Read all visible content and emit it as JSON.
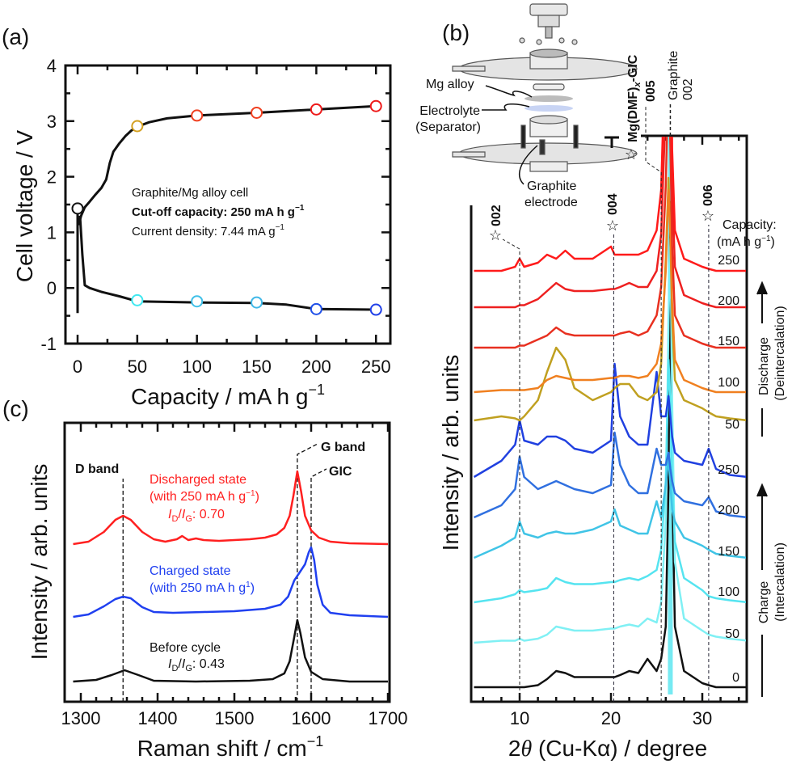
{
  "panel_labels": {
    "a": "(a)",
    "b": "(b)",
    "c": "(c)"
  },
  "chart_data": [
    {
      "panel": "a",
      "type": "line",
      "xlabel": "Capacity / mA h g",
      "xlabel_sup": "−1",
      "ylabel": "Cell voltage / V",
      "xlim": [
        -10,
        262
      ],
      "ylim": [
        -1,
        4
      ],
      "xticks": [
        "0",
        "50",
        "100",
        "150",
        "200",
        "250"
      ],
      "yticks": [
        "-1",
        "0",
        "1",
        "2",
        "3",
        "4"
      ],
      "grid": false,
      "annotations": {
        "cell": "Graphite/Mg alloy cell",
        "cutoff": "Cut-off capacity: 250 mA h g",
        "cutoff_sup": "−1",
        "current": "Current density: 7.44 mA g",
        "current_sup": "−1"
      },
      "series": [
        {
          "role": "initial",
          "color": "#111111",
          "points": [
            [
              0,
              1.43
            ],
            [
              0,
              -0.45
            ]
          ]
        },
        {
          "role": "discharge",
          "color": "#111111",
          "points": [
            [
              0,
              1.3
            ],
            [
              1,
              1.15
            ],
            [
              3,
              1.3
            ],
            [
              6,
              1.45
            ],
            [
              10,
              1.55
            ],
            [
              15,
              1.68
            ],
            [
              20,
              1.8
            ],
            [
              24,
              1.95
            ],
            [
              27,
              2.25
            ],
            [
              30,
              2.45
            ],
            [
              35,
              2.6
            ],
            [
              40,
              2.73
            ],
            [
              45,
              2.83
            ],
            [
              50,
              2.9
            ],
            [
              60,
              2.98
            ],
            [
              75,
              3.05
            ],
            [
              100,
              3.1
            ],
            [
              150,
              3.15
            ],
            [
              200,
              3.21
            ],
            [
              250,
              3.27
            ]
          ]
        },
        {
          "role": "charge",
          "color": "#111111",
          "points": [
            [
              2,
              1.3
            ],
            [
              4,
              0.6
            ],
            [
              6,
              0.05
            ],
            [
              10,
              0
            ],
            [
              20,
              -0.07
            ],
            [
              35,
              -0.15
            ],
            [
              50,
              -0.24
            ],
            [
              100,
              -0.26
            ],
            [
              150,
              -0.27
            ],
            [
              175,
              -0.3
            ],
            [
              200,
              -0.38
            ],
            [
              250,
              -0.39
            ]
          ]
        }
      ],
      "markers": [
        {
          "x": 0,
          "y": 1.43,
          "color": "#111111"
        },
        {
          "x": 50,
          "y": 2.91,
          "color": "#d4a020"
        },
        {
          "x": 100,
          "y": 3.1,
          "color": "#f04020"
        },
        {
          "x": 150,
          "y": 3.15,
          "color": "#f04020"
        },
        {
          "x": 200,
          "y": 3.21,
          "color": "#ee1a1a"
        },
        {
          "x": 250,
          "y": 3.27,
          "color": "#ee1a1a"
        },
        {
          "x": 50,
          "y": -0.22,
          "color": "#40e8f0"
        },
        {
          "x": 100,
          "y": -0.24,
          "color": "#40c0e8"
        },
        {
          "x": 150,
          "y": -0.26,
          "color": "#40b8e8"
        },
        {
          "x": 200,
          "y": -0.38,
          "color": "#2050e8"
        },
        {
          "x": 250,
          "y": -0.39,
          "color": "#2040e8"
        }
      ]
    },
    {
      "panel": "b",
      "type": "line",
      "xlabel_parts": {
        "two": "2",
        "theta": "θ",
        "rest": " (Cu-Kα) / degree"
      },
      "ylabel": "Intensity / arb. units",
      "xlim": [
        5,
        35
      ],
      "xticks": [
        "10",
        "20",
        "30"
      ],
      "grid": false,
      "schematic_labels": {
        "mg_alloy": "Mg alloy",
        "electrolyte": "Electrolyte",
        "separator": "(Separator)",
        "graphite": "Graphite",
        "electrode": "electrode"
      },
      "reflections": {
        "gic_title": "Mg(DMF)",
        "gic_sub": "x",
        "gic_suffix": "-GIC",
        "r002": {
          "label": "002",
          "x": 10.0
        },
        "r004": {
          "label": "004",
          "x": 20.3
        },
        "r005": {
          "label": "005",
          "x": 25.5
        },
        "r006": {
          "label": "006",
          "x": 30.7
        },
        "graphite_title": "Graphite",
        "graphite": {
          "label": "002",
          "x": 26.5
        },
        "star": "☆"
      },
      "capacity_header": "Capacity:",
      "capacity_unit": "(mA h g",
      "capacity_unit_sup": "−1",
      "capacity_unit_close": ")",
      "discharge_label": "Discharge",
      "discharge_sub": "(Deintercalation)",
      "charge_label": "Charge",
      "charge_sub": "(Intercalation)",
      "x": [
        5,
        8,
        9.5,
        10,
        10.5,
        12,
        13,
        14,
        15,
        16,
        18,
        20,
        20.4,
        21,
        22,
        23,
        24,
        25,
        25.5,
        26,
        26.3,
        26.5,
        26.7,
        27,
        28,
        30,
        30.7,
        31.5,
        33,
        35
      ],
      "series": [
        {
          "name": "0",
          "process": "charge",
          "offset": 0,
          "color": "#111111",
          "values": [
            0,
            0,
            0,
            0,
            0,
            0.05,
            0.2,
            0.4,
            0.35,
            0.25,
            0.25,
            0.25,
            0.25,
            0.3,
            0.4,
            0.35,
            0.7,
            0.4,
            0.7,
            1.5,
            5,
            12,
            5,
            1.5,
            0.4,
            0.1,
            0.05,
            0,
            0,
            0
          ]
        },
        {
          "name": "50",
          "process": "charge",
          "offset": 1.1,
          "color": "#80f0f4",
          "values": [
            0,
            0.05,
            0.05,
            0.1,
            0.05,
            0.1,
            0.2,
            0.4,
            0.35,
            0.3,
            0.3,
            0.35,
            0.35,
            0.4,
            0.45,
            0.4,
            0.6,
            0.5,
            1.0,
            3,
            8,
            10,
            6,
            2,
            0.6,
            0.3,
            0.2,
            0.15,
            0.1,
            0.05
          ]
        },
        {
          "name": "100",
          "process": "charge",
          "offset": 2.1,
          "color": "#55e4f0",
          "values": [
            0,
            0.1,
            0.2,
            0.3,
            0.25,
            0.3,
            0.35,
            0.6,
            0.5,
            0.45,
            0.45,
            0.5,
            0.5,
            0.55,
            0.6,
            0.55,
            0.65,
            0.8,
            1.3,
            3,
            6,
            5,
            3,
            1.5,
            0.6,
            0.3,
            0.15,
            0.1,
            0.05,
            0
          ]
        },
        {
          "name": "150",
          "process": "charge",
          "offset": 3.2,
          "color": "#40c4e6",
          "values": [
            0,
            0.3,
            0.5,
            0.9,
            0.6,
            0.5,
            0.6,
            0.65,
            0.6,
            0.6,
            0.7,
            0.9,
            1.2,
            0.8,
            0.7,
            0.6,
            0.6,
            1.4,
            1.0,
            1.8,
            2.5,
            1.8,
            1.2,
            0.9,
            0.5,
            0.3,
            0.2,
            0.1,
            0.05,
            0
          ]
        },
        {
          "name": "200",
          "process": "charge",
          "offset": 4.2,
          "color": "#3070e0",
          "values": [
            0,
            0.3,
            0.7,
            1.5,
            1.0,
            0.7,
            0.8,
            0.9,
            0.8,
            0.7,
            0.6,
            0.8,
            2.1,
            1.3,
            0.8,
            0.6,
            0.6,
            1.7,
            1.3,
            1.3,
            1.6,
            1.2,
            0.9,
            0.6,
            0.4,
            0.3,
            0.5,
            0.15,
            0.05,
            0
          ]
        },
        {
          "name": "250",
          "process": "charge",
          "offset": 5.2,
          "color": "#2040e0",
          "values": [
            0,
            0.4,
            0.8,
            1.4,
            0.9,
            0.8,
            1.0,
            1.0,
            0.9,
            0.7,
            0.6,
            0.9,
            2.8,
            1.5,
            1.0,
            0.8,
            0.8,
            2.6,
            1.5,
            1.5,
            2.0,
            1.5,
            1.0,
            0.6,
            0.4,
            0.3,
            0.7,
            0.2,
            0.05,
            0
          ]
        },
        {
          "name": "50",
          "process": "discharge",
          "offset": 6.6,
          "color": "#c0a020",
          "values": [
            0,
            0.1,
            0.05,
            0,
            0.1,
            0.5,
            1.2,
            1.8,
            1.5,
            0.8,
            0.5,
            0.7,
            0.8,
            0.9,
            0.9,
            0.6,
            0.5,
            0.7,
            1.4,
            4,
            6,
            4.5,
            2.5,
            1.0,
            0.5,
            0.3,
            0.2,
            0.1,
            0.05,
            0
          ]
        },
        {
          "name": "100",
          "process": "discharge",
          "offset": 7.3,
          "color": "#f08020",
          "values": [
            0,
            0.05,
            0.05,
            0.05,
            0.05,
            0.1,
            0.3,
            0.4,
            0.35,
            0.3,
            0.3,
            0.35,
            0.35,
            0.4,
            0.4,
            0.35,
            0.4,
            0.7,
            1.2,
            3,
            5,
            4,
            2.2,
            0.8,
            0.3,
            0.1,
            0.05,
            0,
            0,
            0
          ]
        },
        {
          "name": "150",
          "process": "discharge",
          "offset": 8.4,
          "color": "#e83020",
          "values": [
            0,
            0,
            0,
            0.05,
            0.05,
            0.2,
            0.3,
            0.5,
            0.35,
            0.3,
            0.3,
            0.3,
            0.3,
            0.35,
            0.4,
            0.3,
            0.4,
            0.8,
            1.5,
            4,
            7,
            5,
            2.5,
            0.8,
            0.3,
            0.1,
            0.05,
            0,
            0,
            0
          ]
        },
        {
          "name": "200",
          "process": "discharge",
          "offset": 9.4,
          "color": "#ee2020",
          "values": [
            0,
            0,
            0,
            0.05,
            0.05,
            0.2,
            0.4,
            0.6,
            0.45,
            0.4,
            0.4,
            0.45,
            0.45,
            0.5,
            0.6,
            0.5,
            0.5,
            0.9,
            1.8,
            5,
            9,
            6,
            3,
            1,
            0.3,
            0.1,
            0.05,
            0,
            0,
            0
          ]
        },
        {
          "name": "250",
          "process": "discharge",
          "offset": 10.3,
          "color": "#ff1a1a",
          "values": [
            0,
            0,
            0.1,
            0.3,
            0.1,
            0.2,
            0.4,
            0.3,
            0.5,
            0.3,
            0.3,
            0.6,
            0.4,
            0.4,
            0.4,
            0.4,
            0.5,
            1.0,
            2,
            6,
            13,
            8,
            3,
            1,
            0.3,
            0.1,
            0.05,
            0,
            0,
            0
          ]
        }
      ]
    },
    {
      "panel": "c",
      "type": "line",
      "xlabel": "Raman shift / cm",
      "xlabel_sup": "−1",
      "ylabel": "Intensity / arb. units",
      "xlim": [
        1279,
        1702
      ],
      "xticks": [
        "1300",
        "1400",
        "1500",
        "1600",
        "1700"
      ],
      "grid": false,
      "bands": {
        "d": {
          "label": "D band",
          "x": 1355
        },
        "g": {
          "label": "G band",
          "x": 1582
        },
        "gic": {
          "label": "GIC",
          "x": 1600
        }
      },
      "ratio_symbol": {
        "i": "I",
        "d": "D",
        "slash": "/",
        "g": "G"
      },
      "series": [
        {
          "name": "Discharged state",
          "detail": "(with 250 mA h g",
          "detail_sup": "−1",
          "detail_close": ")",
          "ratio": ": 0.70",
          "color": "#ff2020",
          "points": [
            [
              1290,
              1.7
            ],
            [
              1310,
              1.73
            ],
            [
              1330,
              1.85
            ],
            [
              1345,
              2.0
            ],
            [
              1355,
              2.05
            ],
            [
              1365,
              2.0
            ],
            [
              1380,
              1.85
            ],
            [
              1395,
              1.76
            ],
            [
              1410,
              1.73
            ],
            [
              1425,
              1.76
            ],
            [
              1432,
              1.8
            ],
            [
              1440,
              1.75
            ],
            [
              1450,
              1.77
            ],
            [
              1460,
              1.75
            ],
            [
              1480,
              1.74
            ],
            [
              1500,
              1.75
            ],
            [
              1520,
              1.76
            ],
            [
              1540,
              1.78
            ],
            [
              1555,
              1.82
            ],
            [
              1565,
              1.9
            ],
            [
              1572,
              2.05
            ],
            [
              1577,
              2.3
            ],
            [
              1582,
              2.6
            ],
            [
              1587,
              2.35
            ],
            [
              1592,
              2.05
            ],
            [
              1600,
              1.87
            ],
            [
              1610,
              1.78
            ],
            [
              1625,
              1.73
            ],
            [
              1650,
              1.71
            ],
            [
              1700,
              1.7
            ]
          ]
        },
        {
          "name": "Charged state",
          "detail": "(with 250 mA h g",
          "detail_sup": "1",
          "detail_close": ")",
          "color": "#2040f0",
          "points": [
            [
              1290,
              0.8
            ],
            [
              1310,
              0.83
            ],
            [
              1330,
              0.93
            ],
            [
              1345,
              1.02
            ],
            [
              1355,
              1.05
            ],
            [
              1365,
              1.03
            ],
            [
              1380,
              0.92
            ],
            [
              1395,
              0.86
            ],
            [
              1420,
              0.85
            ],
            [
              1460,
              0.86
            ],
            [
              1500,
              0.87
            ],
            [
              1540,
              0.9
            ],
            [
              1560,
              0.95
            ],
            [
              1570,
              1.05
            ],
            [
              1578,
              1.25
            ],
            [
              1585,
              1.35
            ],
            [
              1592,
              1.45
            ],
            [
              1597,
              1.6
            ],
            [
              1600,
              1.66
            ],
            [
              1604,
              1.5
            ],
            [
              1608,
              1.2
            ],
            [
              1615,
              0.95
            ],
            [
              1625,
              0.85
            ],
            [
              1650,
              0.82
            ],
            [
              1700,
              0.8
            ]
          ]
        },
        {
          "name": "Before cycle",
          "ratio": ": 0.43",
          "color": "#111111",
          "points": [
            [
              1290,
              0
            ],
            [
              1320,
              0.02
            ],
            [
              1340,
              0.08
            ],
            [
              1357,
              0.14
            ],
            [
              1375,
              0.08
            ],
            [
              1395,
              0.01
            ],
            [
              1450,
              0
            ],
            [
              1520,
              0.01
            ],
            [
              1550,
              0.03
            ],
            [
              1565,
              0.1
            ],
            [
              1572,
              0.25
            ],
            [
              1578,
              0.55
            ],
            [
              1582,
              0.76
            ],
            [
              1586,
              0.6
            ],
            [
              1592,
              0.3
            ],
            [
              1600,
              0.12
            ],
            [
              1615,
              0.03
            ],
            [
              1650,
              0
            ],
            [
              1700,
              0
            ]
          ]
        }
      ]
    }
  ]
}
